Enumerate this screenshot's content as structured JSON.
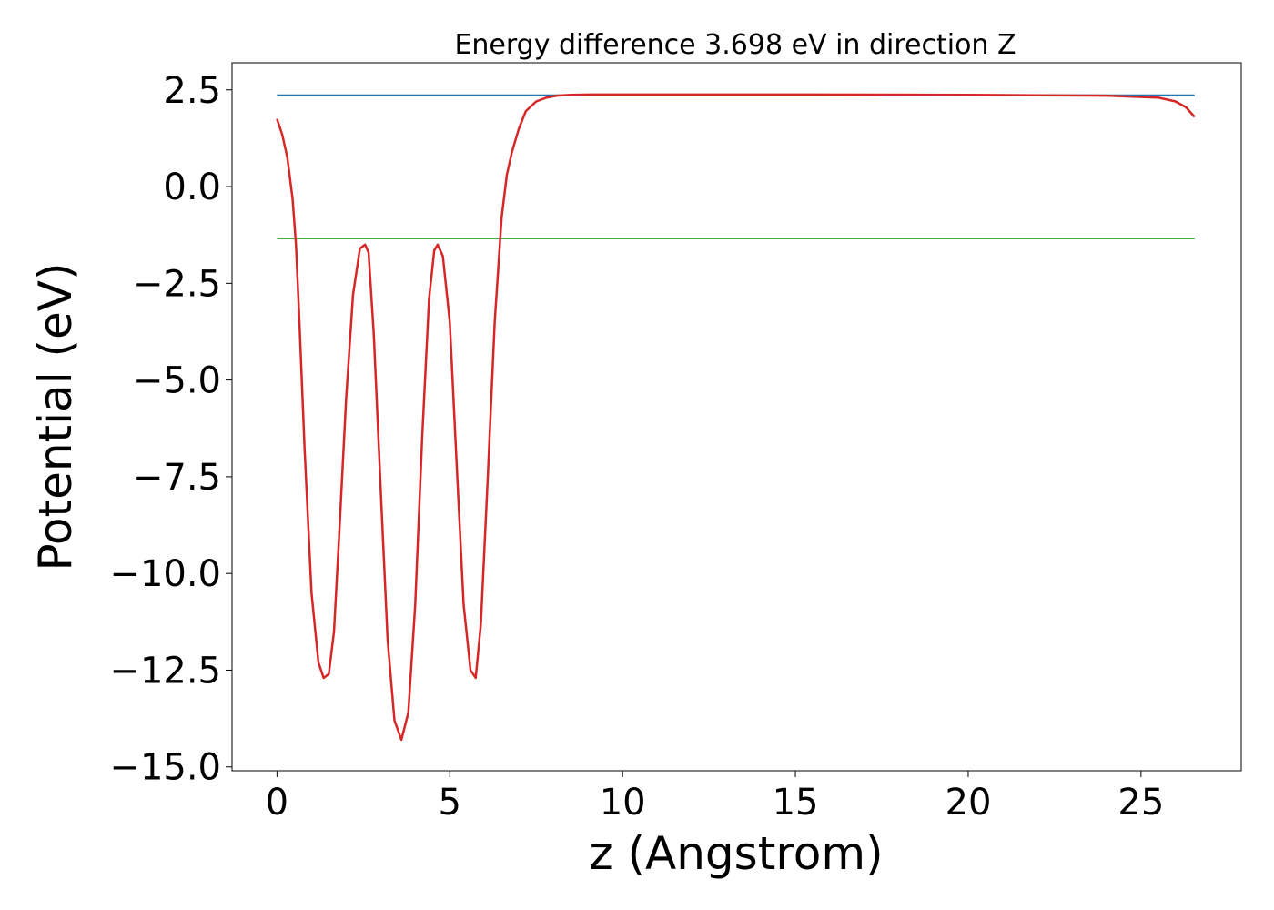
{
  "chart_data": {
    "type": "line",
    "title": "Energy difference 3.698 eV in direction Z",
    "xlabel": "z (Angstrom)",
    "ylabel": "Potential (eV)",
    "xlim": [
      -1.3,
      27.9
    ],
    "ylim": [
      -15.1,
      3.2
    ],
    "xticks": [
      0,
      5,
      10,
      15,
      20,
      25
    ],
    "yticks": [
      2.5,
      0.0,
      -2.5,
      -5.0,
      -7.5,
      -10.0,
      -12.5,
      -15.0
    ],
    "xtick_labels": [
      "0",
      "5",
      "10",
      "15",
      "20",
      "25"
    ],
    "ytick_labels": [
      "2.5",
      "0.0",
      "−2.5",
      "−5.0",
      "−7.5",
      "−10.0",
      "−12.5",
      "−15.0"
    ],
    "grid": false,
    "legend": "none",
    "series": [
      {
        "role": "vacuum-level",
        "color": "#1f77b4",
        "x": [
          0,
          26.55
        ],
        "y": [
          2.36,
          2.36
        ]
      },
      {
        "role": "fermi-level",
        "color": "#2ca02c",
        "x": [
          0,
          26.55
        ],
        "y": [
          -1.34,
          -1.34
        ]
      },
      {
        "role": "potential",
        "color": "#d62728",
        "x": [
          0,
          0.15,
          0.3,
          0.45,
          0.55,
          0.65,
          0.8,
          1.0,
          1.2,
          1.35,
          1.5,
          1.65,
          1.8,
          2.0,
          2.2,
          2.4,
          2.55,
          2.65,
          2.8,
          3.0,
          3.2,
          3.4,
          3.6,
          3.8,
          4.0,
          4.2,
          4.4,
          4.55,
          4.65,
          4.8,
          5.0,
          5.2,
          5.4,
          5.6,
          5.75,
          5.9,
          6.1,
          6.3,
          6.5,
          6.65,
          6.8,
          7.0,
          7.2,
          7.5,
          7.8,
          8.1,
          8.5,
          9.0,
          10.0,
          15.0,
          20.0,
          24.0,
          25.5,
          26.0,
          26.3,
          26.55
        ],
        "y": [
          1.75,
          1.35,
          0.75,
          -0.3,
          -1.5,
          -3.5,
          -6.8,
          -10.5,
          -12.3,
          -12.7,
          -12.6,
          -11.5,
          -9.0,
          -5.5,
          -2.8,
          -1.6,
          -1.5,
          -1.7,
          -3.8,
          -7.8,
          -11.7,
          -13.8,
          -14.3,
          -13.6,
          -10.8,
          -6.5,
          -2.9,
          -1.65,
          -1.5,
          -1.8,
          -3.5,
          -7.2,
          -10.8,
          -12.5,
          -12.7,
          -11.3,
          -7.5,
          -3.5,
          -0.8,
          0.3,
          0.9,
          1.5,
          1.95,
          2.2,
          2.3,
          2.35,
          2.37,
          2.38,
          2.38,
          2.38,
          2.37,
          2.35,
          2.3,
          2.2,
          2.05,
          1.8
        ]
      }
    ]
  }
}
